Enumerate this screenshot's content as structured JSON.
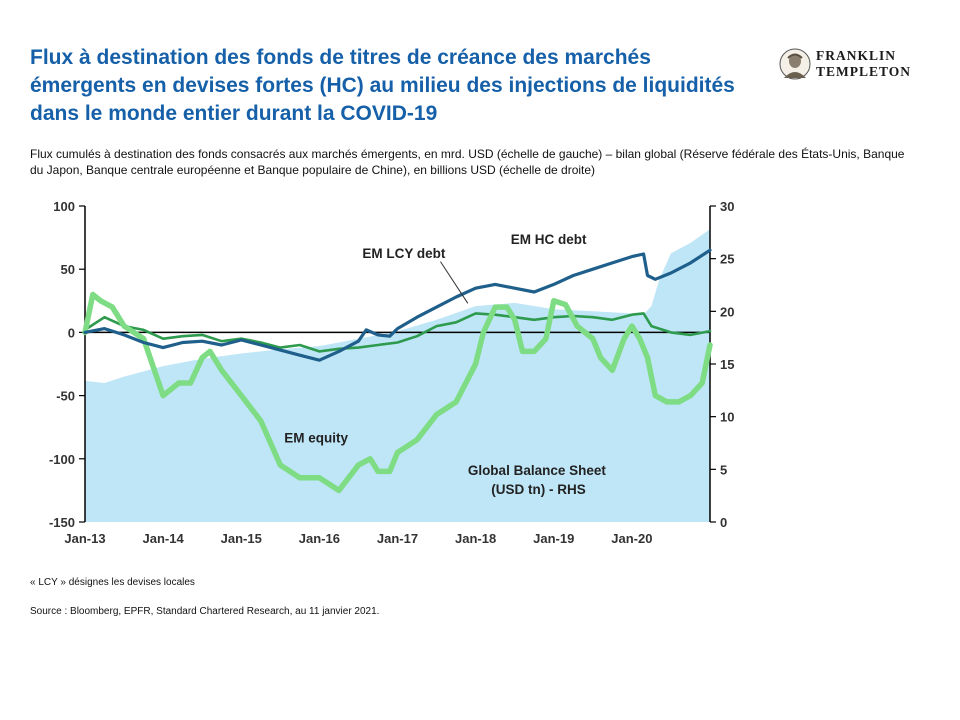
{
  "header": {
    "title": "Flux à destination des fonds de titres de créance des marchés émergents en devises fortes (HC) au milieu des injections de liquidités dans le monde entier durant la COVID-19",
    "subtitle": "Flux cumulés à destination des fonds consacrés aux marchés émergents, en mrd. USD (échelle de gauche) – bilan global (Réserve fédérale des États-Unis, Banque du Japon, Banque centrale européenne et Banque populaire de Chine), en billions USD (échelle de droite)"
  },
  "logo": {
    "line1": "FRANKLIN",
    "line2": "TEMPLETON"
  },
  "footer": {
    "note": "« LCY » désignes les devises locales",
    "source": "Source : Bloomberg, EPFR, Standard Chartered Research, au 11 janvier 2021."
  },
  "colors": {
    "title": "#1560a8",
    "hc": "#1f5f8b",
    "lcy": "#2e9a4e",
    "equity": "#7ddc84",
    "balance": "#bfe6f7"
  },
  "chart_data": {
    "type": "line",
    "x_ticks": [
      "Jan-13",
      "Jan-14",
      "Jan-15",
      "Jan-16",
      "Jan-17",
      "Jan-18",
      "Jan-19",
      "Jan-20"
    ],
    "x_range": [
      2013.0,
      2021.0
    ],
    "ylim_left": [
      -150,
      100
    ],
    "yticks_left": [
      "100",
      "50",
      "0",
      "-50",
      "-100",
      "-150"
    ],
    "ylim_right": [
      0,
      30
    ],
    "yticks_right": [
      "30",
      "25",
      "20",
      "15",
      "10",
      "5",
      "0"
    ],
    "annotations": {
      "hc": "EM HC debt",
      "lcy": "EM LCY debt",
      "equity": "EM equity",
      "balance_1": "Global Balance Sheet",
      "balance_2": "(USD tn) - RHS"
    },
    "series": [
      {
        "key": "balance",
        "axis": "right",
        "x": [
          2013.0,
          2013.25,
          2013.5,
          2013.75,
          2014.0,
          2014.5,
          2015.0,
          2015.5,
          2016.0,
          2016.5,
          2017.0,
          2017.5,
          2018.0,
          2018.5,
          2019.0,
          2019.5,
          2020.0,
          2020.15,
          2020.25,
          2020.35,
          2020.5,
          2020.75,
          2021.0
        ],
        "values": [
          13.4,
          13.2,
          13.8,
          14.3,
          14.8,
          15.5,
          16.0,
          16.4,
          16.7,
          17.4,
          18.1,
          19.2,
          20.5,
          20.8,
          20.2,
          20.0,
          19.8,
          19.7,
          20.5,
          23.0,
          25.5,
          26.5,
          27.8
        ]
      },
      {
        "key": "hc",
        "axis": "left",
        "x": [
          2013.0,
          2013.25,
          2013.5,
          2013.75,
          2014.0,
          2014.25,
          2014.5,
          2014.75,
          2015.0,
          2015.25,
          2015.5,
          2015.75,
          2016.0,
          2016.25,
          2016.5,
          2016.6,
          2016.75,
          2016.9,
          2017.0,
          2017.25,
          2017.5,
          2017.75,
          2018.0,
          2018.25,
          2018.5,
          2018.75,
          2019.0,
          2019.25,
          2019.5,
          2019.75,
          2020.0,
          2020.15,
          2020.2,
          2020.3,
          2020.5,
          2020.75,
          2021.0
        ],
        "values": [
          0,
          3,
          -2,
          -8,
          -12,
          -8,
          -7,
          -10,
          -6,
          -10,
          -14,
          -18,
          -22,
          -15,
          -7,
          2,
          -2,
          -3,
          3,
          12,
          20,
          28,
          35,
          38,
          35,
          32,
          38,
          45,
          50,
          55,
          60,
          62,
          45,
          42,
          47,
          55,
          65
        ]
      },
      {
        "key": "lcy",
        "axis": "left",
        "x": [
          2013.0,
          2013.25,
          2013.5,
          2013.75,
          2014.0,
          2014.25,
          2014.5,
          2014.75,
          2015.0,
          2015.25,
          2015.5,
          2015.75,
          2016.0,
          2016.25,
          2016.5,
          2016.75,
          2017.0,
          2017.25,
          2017.5,
          2017.75,
          2018.0,
          2018.25,
          2018.5,
          2018.75,
          2019.0,
          2019.25,
          2019.5,
          2019.75,
          2020.0,
          2020.15,
          2020.25,
          2020.5,
          2020.75,
          2021.0
        ],
        "values": [
          2,
          12,
          5,
          2,
          -5,
          -3,
          -2,
          -7,
          -5,
          -8,
          -12,
          -10,
          -15,
          -13,
          -12,
          -10,
          -8,
          -3,
          5,
          8,
          15,
          14,
          12,
          10,
          12,
          13,
          12,
          10,
          14,
          15,
          5,
          0,
          -2,
          1
        ]
      },
      {
        "key": "equity",
        "axis": "left",
        "x": [
          2013.0,
          2013.1,
          2013.2,
          2013.35,
          2013.5,
          2013.75,
          2014.0,
          2014.2,
          2014.35,
          2014.5,
          2014.6,
          2014.75,
          2015.0,
          2015.25,
          2015.5,
          2015.75,
          2016.0,
          2016.25,
          2016.5,
          2016.65,
          2016.75,
          2016.9,
          2017.0,
          2017.25,
          2017.5,
          2017.75,
          2018.0,
          2018.1,
          2018.25,
          2018.4,
          2018.5,
          2018.6,
          2018.75,
          2018.9,
          2019.0,
          2019.15,
          2019.3,
          2019.5,
          2019.6,
          2019.75,
          2019.9,
          2020.0,
          2020.1,
          2020.2,
          2020.3,
          2020.45,
          2020.6,
          2020.75,
          2020.9,
          2021.0
        ],
        "values": [
          0,
          30,
          25,
          20,
          5,
          -5,
          -50,
          -40,
          -40,
          -20,
          -15,
          -30,
          -50,
          -70,
          -105,
          -115,
          -115,
          -125,
          -105,
          -100,
          -110,
          -110,
          -95,
          -85,
          -65,
          -55,
          -25,
          0,
          20,
          20,
          10,
          -15,
          -15,
          -5,
          25,
          22,
          5,
          -5,
          -20,
          -30,
          -5,
          5,
          -5,
          -20,
          -50,
          -55,
          -55,
          -50,
          -40,
          -10
        ]
      }
    ]
  }
}
